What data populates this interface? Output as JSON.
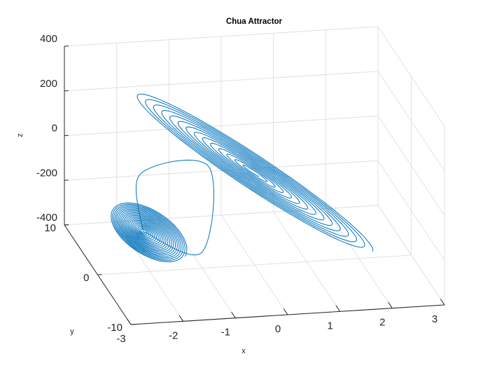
{
  "chart_data": {
    "type": "line",
    "projection": "3d",
    "title": "Chua Attractor",
    "xlabel": "x",
    "ylabel": "y",
    "zlabel": "z",
    "xlim": [
      -3,
      3
    ],
    "ylim": [
      -10,
      10
    ],
    "zlim": [
      -400,
      400
    ],
    "x_ticks": [
      "-3",
      "-2",
      "-1",
      "0",
      "1",
      "2",
      "3"
    ],
    "y_ticks": [
      "-10",
      "0",
      "10"
    ],
    "z_ticks": [
      "-400",
      "-200",
      "0",
      "200",
      "400"
    ],
    "grid": true,
    "line_color": "#0072BD",
    "series": [
      {
        "trajectory": "spiral-around-lower-equilibrium",
        "center": [
          -2.1,
          0.5,
          -230
        ],
        "radius_start": 0.05,
        "radius_end": 1.0,
        "turns": 22
      },
      {
        "trajectory": "transition-loops",
        "points": [
          [
            -2.1,
            0.5,
            -230
          ],
          [
            -1.8,
            6.0,
            -100
          ],
          [
            -0.4,
            7.5,
            -120
          ],
          [
            -1.2,
            -3.0,
            -260
          ],
          [
            -2.1,
            0.5,
            -230
          ]
        ]
      },
      {
        "trajectory": "elongated-spiral-around-upper-equilibrium",
        "center": [
          0.1,
          2.0,
          -30
        ],
        "radius_start": 0.05,
        "radius_end": 1.0,
        "turns": 14
      }
    ]
  }
}
